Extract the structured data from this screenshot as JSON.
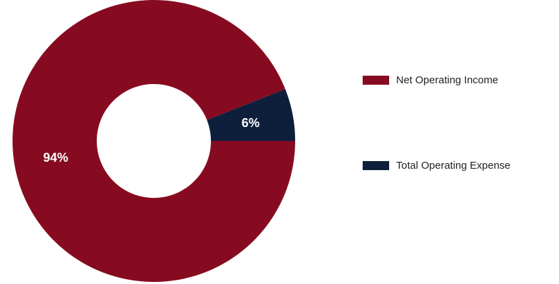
{
  "chart_data": {
    "type": "pie",
    "donut": true,
    "legend_position": "right",
    "slices": [
      {
        "name": "Net Operating Income",
        "value": 94,
        "label": "94%",
        "color": "#870b20"
      },
      {
        "name": "Total Operating Expense",
        "value": 6,
        "label": "6%",
        "color": "#0e1f3b"
      }
    ]
  },
  "legend": {
    "items": [
      {
        "label": "Net Operating Income",
        "color": "#870b20"
      },
      {
        "label": "Total Operating Expense",
        "color": "#0e1f3b"
      }
    ]
  }
}
